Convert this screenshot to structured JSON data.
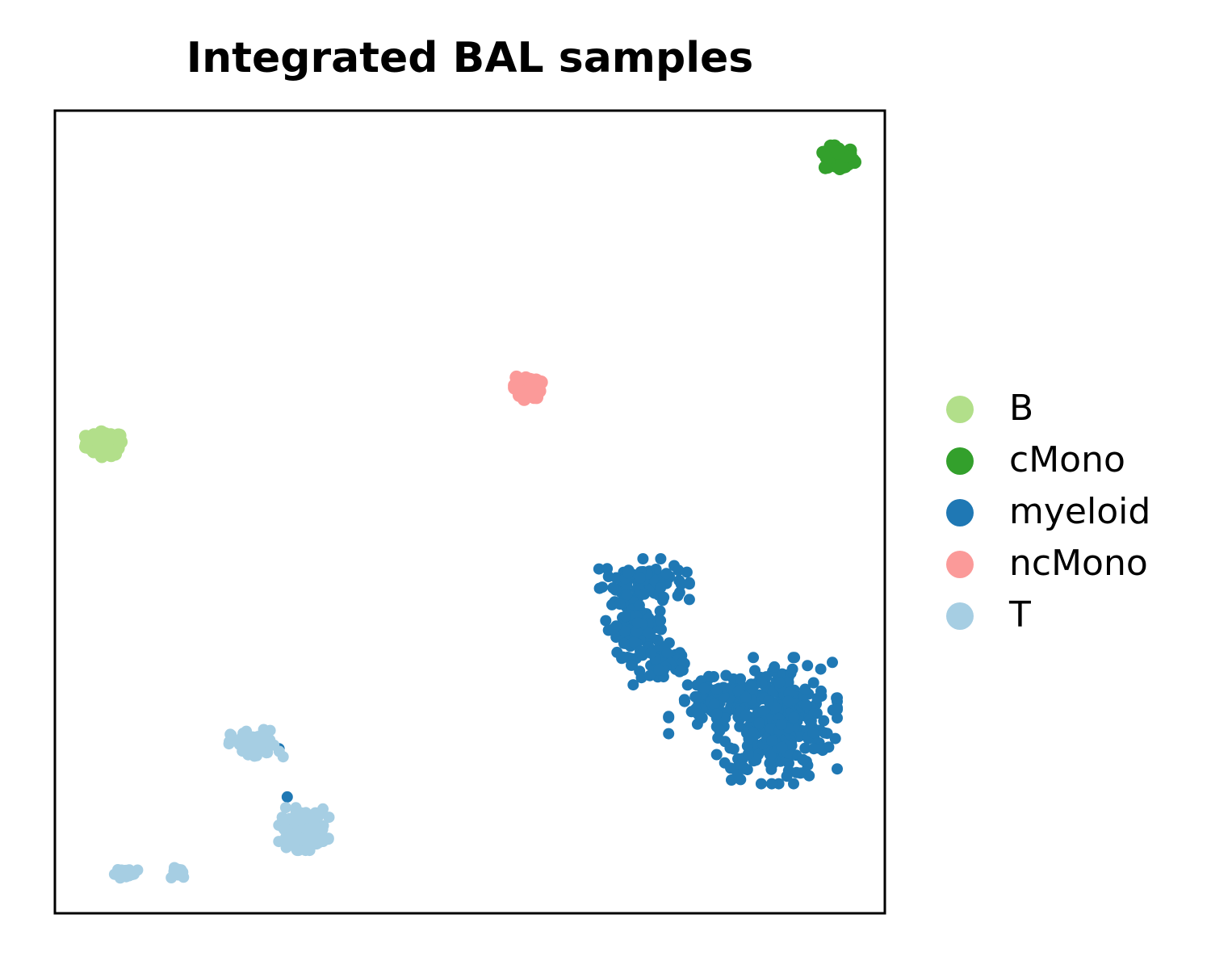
{
  "chart_data": {
    "type": "scatter",
    "title": "Integrated BAL samples",
    "xlabel": "",
    "ylabel": "",
    "xlim": [
      0,
      100
    ],
    "ylim": [
      0,
      100
    ],
    "show_ticks": false,
    "grid": false,
    "legend_position": "right",
    "series": [
      {
        "name": "B",
        "color": "#b2df8a",
        "size": 1.2,
        "clusters": [
          {
            "cx": 6.0,
            "cy": 58.5,
            "rx": 2.0,
            "ry": 1.3,
            "n": 70
          }
        ],
        "points": []
      },
      {
        "name": "cMono",
        "color": "#33a02c",
        "size": 1.2,
        "clusters": [
          {
            "cx": 94.5,
            "cy": 94.0,
            "rx": 1.6,
            "ry": 1.3,
            "n": 70
          }
        ],
        "points": []
      },
      {
        "name": "myeloid",
        "color": "#1f78b4",
        "size": 1.0,
        "clusters": [
          {
            "cx": 71.0,
            "cy": 41.5,
            "rx": 4.5,
            "ry": 2.2,
            "n": 90
          },
          {
            "cx": 70.0,
            "cy": 36.0,
            "rx": 3.0,
            "ry": 3.5,
            "n": 90
          },
          {
            "cx": 73.5,
            "cy": 31.0,
            "rx": 3.5,
            "ry": 2.5,
            "n": 50
          },
          {
            "cx": 80.0,
            "cy": 26.0,
            "rx": 5.0,
            "ry": 3.0,
            "n": 80
          },
          {
            "cx": 87.0,
            "cy": 24.0,
            "rx": 6.0,
            "ry": 6.5,
            "n": 320
          }
        ],
        "points": [
          [
            28.0,
            14.5
          ],
          [
            27.0,
            20.5
          ]
        ]
      },
      {
        "name": "ncMono",
        "color": "#fb9a99",
        "size": 1.2,
        "clusters": [
          {
            "cx": 56.9,
            "cy": 65.5,
            "rx": 1.4,
            "ry": 1.2,
            "n": 60
          }
        ],
        "points": []
      },
      {
        "name": "T",
        "color": "#a6cee3",
        "size": 1.0,
        "clusters": [
          {
            "cx": 24.0,
            "cy": 21.0,
            "rx": 2.5,
            "ry": 1.6,
            "n": 80
          },
          {
            "cx": 30.0,
            "cy": 10.5,
            "rx": 2.5,
            "ry": 2.2,
            "n": 120
          },
          {
            "cx": 9.0,
            "cy": 5.0,
            "rx": 1.5,
            "ry": 0.5,
            "n": 25
          },
          {
            "cx": 15.0,
            "cy": 5.0,
            "rx": 0.8,
            "ry": 0.6,
            "n": 20
          }
        ],
        "points": [
          [
            27.5,
            19.5
          ]
        ]
      }
    ]
  }
}
